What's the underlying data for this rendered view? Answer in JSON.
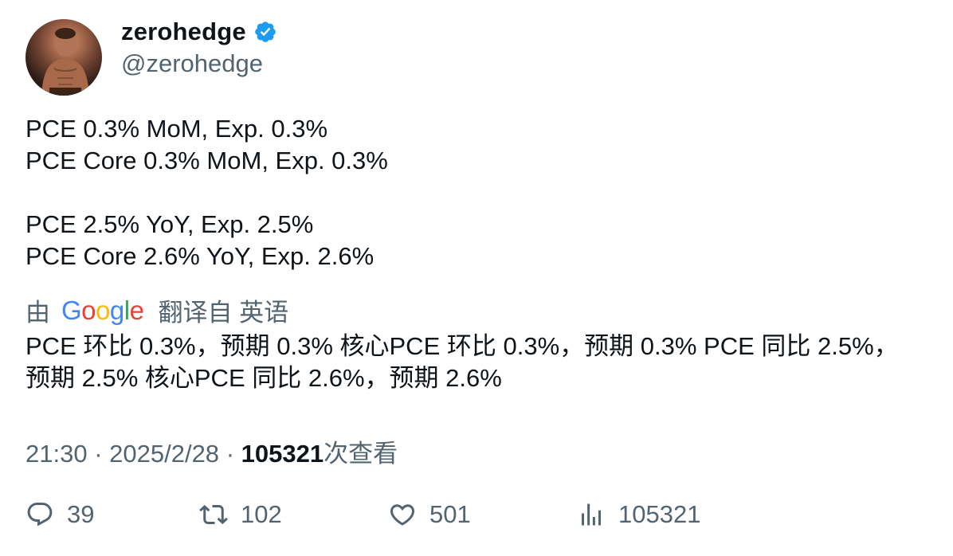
{
  "author": {
    "name": "zerohedge",
    "handle": "@zerohedge",
    "verified": true,
    "badge_color": "#1d9bf0"
  },
  "tweet": {
    "lines": [
      "PCE 0.3% MoM, Exp. 0.3%",
      "PCE Core 0.3% MoM, Exp. 0.3%",
      "PCE 2.5% YoY, Exp. 2.5%",
      "PCE Core 2.6% YoY, Exp. 2.6%"
    ]
  },
  "translation": {
    "prefix": "由",
    "provider": "Google",
    "suffix": "翻译自 英语",
    "text_line1": "PCE 环比 0.3%，预期 0.3% 核心PCE 环比 0.3%，预期 0.3% PCE 同比 2.5%，",
    "text_line2": "预期 2.5% 核心PCE 同比 2.6%，预期 2.6%"
  },
  "meta": {
    "time": "21:30",
    "date": "2025/2/28",
    "views": "105321",
    "views_label": "次查看"
  },
  "actions": {
    "replies": "39",
    "reposts": "102",
    "likes": "501",
    "views": "105321"
  },
  "icons": {
    "reply": "reply-icon",
    "repost": "repost-icon",
    "like": "like-icon",
    "views": "views-icon"
  },
  "colors": {
    "text": "#0f1419",
    "secondary": "#536471",
    "google_blue": "#4285f4",
    "google_red": "#ea4335",
    "google_yellow": "#fbbc05",
    "google_green": "#34a853"
  }
}
